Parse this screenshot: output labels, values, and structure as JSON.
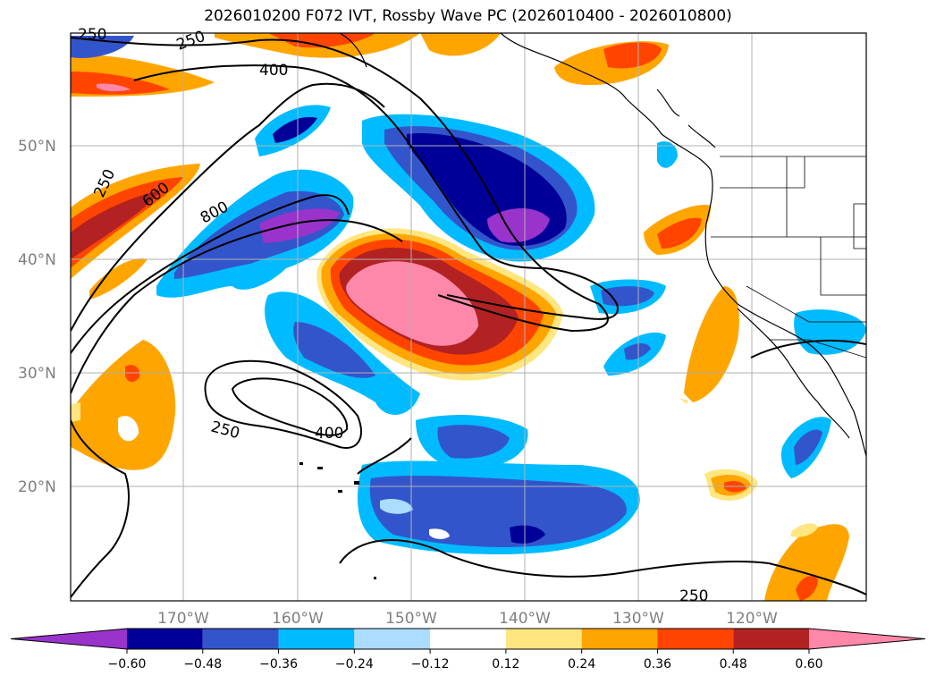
{
  "title": "2026010200 F072 IVT, Rossby Wave PC (2026010400 - 2026010800)",
  "lat_labels": [
    "50°N",
    "40°N",
    "30°N",
    "20°N"
  ],
  "lon_labels": [
    "170°W",
    "160°W",
    "150°W",
    "140°W",
    "130°W",
    "120°W"
  ],
  "colorbar": {
    "tick_labels": [
      "−0.60",
      "−0.48",
      "−0.36",
      "−0.24",
      "−0.12",
      "0.12",
      "0.24",
      "0.36",
      "0.48",
      "0.60"
    ],
    "colors": [
      "#9933cc",
      "#000099",
      "#3355cc",
      "#00bbff",
      "#aaddff",
      "#ffffff",
      "#ffe680",
      "#ffa500",
      "#ff4400",
      "#b22222",
      "#ff88aa"
    ]
  },
  "contour_labels": [
    "250",
    "250",
    "400",
    "600",
    "800",
    "250",
    "400",
    "250",
    "250"
  ],
  "colors": {
    "purple": "#9933cc",
    "navy": "#000099",
    "blue": "#3355cc",
    "cyan": "#00bbff",
    "lightblue": "#aaddff",
    "yellow": "#ffe680",
    "orange": "#ffa500",
    "redorange": "#ff4400",
    "darkred": "#b22222",
    "pink": "#ff88aa"
  }
}
